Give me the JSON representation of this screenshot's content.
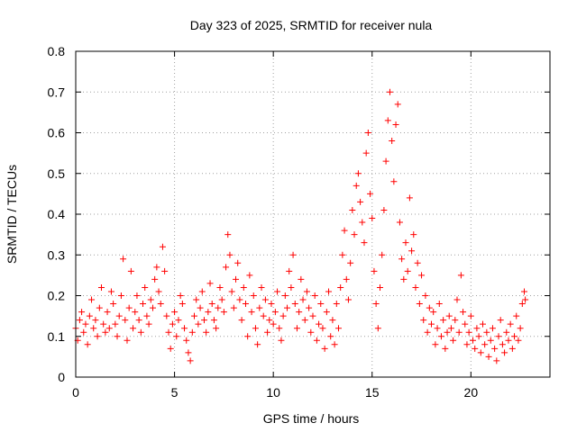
{
  "chart_data": {
    "type": "scatter",
    "title": "Day 323 of 2025, SRMTID for receiver nula",
    "xlabel": "GPS time / hours",
    "ylabel": "SRMTID / TECUs",
    "xlim": [
      0,
      24
    ],
    "ylim": [
      0,
      0.8
    ],
    "x_ticks": [
      0,
      5,
      10,
      15,
      20
    ],
    "x_tick_labels": [
      "0",
      "5",
      "10",
      "15",
      "20"
    ],
    "y_ticks": [
      0,
      0.1,
      0.2,
      0.3,
      0.4,
      0.5,
      0.6,
      0.7,
      0.8
    ],
    "y_tick_labels": [
      "0",
      "0.1",
      "0.2",
      "0.3",
      "0.4",
      "0.5",
      "0.6",
      "0.7",
      "0.8"
    ],
    "grid": true,
    "marker": "plus",
    "color": "#ff0000",
    "series": [
      {
        "name": "SRMTID",
        "points": [
          [
            0.0,
            0.12
          ],
          [
            0.1,
            0.09
          ],
          [
            0.2,
            0.14
          ],
          [
            0.3,
            0.16
          ],
          [
            0.4,
            0.11
          ],
          [
            0.5,
            0.13
          ],
          [
            0.6,
            0.08
          ],
          [
            0.7,
            0.15
          ],
          [
            0.8,
            0.19
          ],
          [
            0.9,
            0.12
          ],
          [
            1.0,
            0.14
          ],
          [
            1.1,
            0.1
          ],
          [
            1.2,
            0.17
          ],
          [
            1.3,
            0.22
          ],
          [
            1.4,
            0.13
          ],
          [
            1.5,
            0.11
          ],
          [
            1.6,
            0.16
          ],
          [
            1.7,
            0.12
          ],
          [
            1.8,
            0.21
          ],
          [
            1.9,
            0.18
          ],
          [
            2.0,
            0.13
          ],
          [
            2.1,
            0.1
          ],
          [
            2.2,
            0.15
          ],
          [
            2.3,
            0.2
          ],
          [
            2.4,
            0.29
          ],
          [
            2.5,
            0.14
          ],
          [
            2.6,
            0.09
          ],
          [
            2.7,
            0.17
          ],
          [
            2.8,
            0.26
          ],
          [
            2.9,
            0.12
          ],
          [
            3.0,
            0.16
          ],
          [
            3.1,
            0.2
          ],
          [
            3.2,
            0.14
          ],
          [
            3.3,
            0.11
          ],
          [
            3.4,
            0.18
          ],
          [
            3.5,
            0.22
          ],
          [
            3.6,
            0.15
          ],
          [
            3.7,
            0.13
          ],
          [
            3.8,
            0.19
          ],
          [
            3.9,
            0.17
          ],
          [
            4.0,
            0.24
          ],
          [
            4.1,
            0.27
          ],
          [
            4.2,
            0.21
          ],
          [
            4.3,
            0.18
          ],
          [
            4.4,
            0.32
          ],
          [
            4.5,
            0.26
          ],
          [
            4.6,
            0.15
          ],
          [
            4.7,
            0.11
          ],
          [
            4.8,
            0.07
          ],
          [
            4.9,
            0.13
          ],
          [
            5.0,
            0.16
          ],
          [
            5.1,
            0.1
          ],
          [
            5.2,
            0.14
          ],
          [
            5.3,
            0.2
          ],
          [
            5.4,
            0.18
          ],
          [
            5.5,
            0.12
          ],
          [
            5.6,
            0.09
          ],
          [
            5.7,
            0.06
          ],
          [
            5.8,
            0.04
          ],
          [
            5.9,
            0.11
          ],
          [
            6.0,
            0.15
          ],
          [
            6.1,
            0.19
          ],
          [
            6.2,
            0.13
          ],
          [
            6.3,
            0.17
          ],
          [
            6.4,
            0.21
          ],
          [
            6.5,
            0.14
          ],
          [
            6.6,
            0.11
          ],
          [
            6.7,
            0.16
          ],
          [
            6.8,
            0.23
          ],
          [
            6.9,
            0.18
          ],
          [
            7.0,
            0.14
          ],
          [
            7.1,
            0.12
          ],
          [
            7.2,
            0.17
          ],
          [
            7.3,
            0.22
          ],
          [
            7.4,
            0.19
          ],
          [
            7.5,
            0.16
          ],
          [
            7.6,
            0.27
          ],
          [
            7.7,
            0.35
          ],
          [
            7.8,
            0.3
          ],
          [
            7.9,
            0.21
          ],
          [
            8.0,
            0.17
          ],
          [
            8.1,
            0.24
          ],
          [
            8.2,
            0.28
          ],
          [
            8.3,
            0.19
          ],
          [
            8.4,
            0.14
          ],
          [
            8.5,
            0.22
          ],
          [
            8.6,
            0.18
          ],
          [
            8.7,
            0.1
          ],
          [
            8.8,
            0.25
          ],
          [
            8.9,
            0.16
          ],
          [
            9.0,
            0.2
          ],
          [
            9.1,
            0.12
          ],
          [
            9.2,
            0.08
          ],
          [
            9.3,
            0.17
          ],
          [
            9.4,
            0.22
          ],
          [
            9.5,
            0.15
          ],
          [
            9.6,
            0.19
          ],
          [
            9.7,
            0.11
          ],
          [
            9.8,
            0.14
          ],
          [
            9.9,
            0.18
          ],
          [
            10.0,
            0.13
          ],
          [
            10.1,
            0.16
          ],
          [
            10.2,
            0.21
          ],
          [
            10.3,
            0.12
          ],
          [
            10.4,
            0.09
          ],
          [
            10.5,
            0.15
          ],
          [
            10.6,
            0.2
          ],
          [
            10.7,
            0.17
          ],
          [
            10.8,
            0.26
          ],
          [
            10.9,
            0.22
          ],
          [
            11.0,
            0.3
          ],
          [
            11.1,
            0.18
          ],
          [
            11.2,
            0.12
          ],
          [
            11.3,
            0.16
          ],
          [
            11.4,
            0.24
          ],
          [
            11.5,
            0.19
          ],
          [
            11.6,
            0.14
          ],
          [
            11.7,
            0.21
          ],
          [
            11.8,
            0.17
          ],
          [
            11.9,
            0.11
          ],
          [
            12.0,
            0.15
          ],
          [
            12.1,
            0.2
          ],
          [
            12.2,
            0.09
          ],
          [
            12.3,
            0.13
          ],
          [
            12.4,
            0.18
          ],
          [
            12.5,
            0.12
          ],
          [
            12.6,
            0.07
          ],
          [
            12.7,
            0.16
          ],
          [
            12.8,
            0.21
          ],
          [
            12.9,
            0.1
          ],
          [
            13.0,
            0.14
          ],
          [
            13.1,
            0.08
          ],
          [
            13.2,
            0.18
          ],
          [
            13.3,
            0.12
          ],
          [
            13.4,
            0.22
          ],
          [
            13.5,
            0.3
          ],
          [
            13.6,
            0.36
          ],
          [
            13.7,
            0.24
          ],
          [
            13.8,
            0.19
          ],
          [
            13.9,
            0.28
          ],
          [
            14.0,
            0.41
          ],
          [
            14.1,
            0.35
          ],
          [
            14.2,
            0.47
          ],
          [
            14.3,
            0.5
          ],
          [
            14.4,
            0.43
          ],
          [
            14.5,
            0.38
          ],
          [
            14.6,
            0.33
          ],
          [
            14.7,
            0.55
          ],
          [
            14.8,
            0.6
          ],
          [
            14.9,
            0.45
          ],
          [
            15.0,
            0.39
          ],
          [
            15.1,
            0.26
          ],
          [
            15.2,
            0.18
          ],
          [
            15.3,
            0.12
          ],
          [
            15.4,
            0.22
          ],
          [
            15.5,
            0.3
          ],
          [
            15.6,
            0.41
          ],
          [
            15.7,
            0.53
          ],
          [
            15.8,
            0.63
          ],
          [
            15.9,
            0.7
          ],
          [
            16.0,
            0.58
          ],
          [
            16.1,
            0.48
          ],
          [
            16.2,
            0.62
          ],
          [
            16.3,
            0.67
          ],
          [
            16.4,
            0.38
          ],
          [
            16.5,
            0.29
          ],
          [
            16.6,
            0.24
          ],
          [
            16.7,
            0.33
          ],
          [
            16.8,
            0.26
          ],
          [
            16.9,
            0.44
          ],
          [
            17.0,
            0.31
          ],
          [
            17.1,
            0.35
          ],
          [
            17.2,
            0.22
          ],
          [
            17.3,
            0.28
          ],
          [
            17.4,
            0.18
          ],
          [
            17.5,
            0.25
          ],
          [
            17.6,
            0.14
          ],
          [
            17.7,
            0.2
          ],
          [
            17.8,
            0.11
          ],
          [
            17.9,
            0.17
          ],
          [
            18.0,
            0.13
          ],
          [
            18.1,
            0.16
          ],
          [
            18.2,
            0.08
          ],
          [
            18.3,
            0.12
          ],
          [
            18.4,
            0.18
          ],
          [
            18.5,
            0.1
          ],
          [
            18.6,
            0.14
          ],
          [
            18.7,
            0.07
          ],
          [
            18.8,
            0.11
          ],
          [
            18.9,
            0.15
          ],
          [
            19.0,
            0.12
          ],
          [
            19.1,
            0.09
          ],
          [
            19.2,
            0.14
          ],
          [
            19.3,
            0.19
          ],
          [
            19.4,
            0.11
          ],
          [
            19.5,
            0.25
          ],
          [
            19.6,
            0.16
          ],
          [
            19.7,
            0.13
          ],
          [
            19.8,
            0.08
          ],
          [
            19.9,
            0.11
          ],
          [
            20.0,
            0.15
          ],
          [
            20.1,
            0.09
          ],
          [
            20.2,
            0.07
          ],
          [
            20.3,
            0.12
          ],
          [
            20.4,
            0.1
          ],
          [
            20.5,
            0.06
          ],
          [
            20.6,
            0.13
          ],
          [
            20.7,
            0.08
          ],
          [
            20.8,
            0.11
          ],
          [
            20.9,
            0.05
          ],
          [
            21.0,
            0.09
          ],
          [
            21.1,
            0.12
          ],
          [
            21.2,
            0.07
          ],
          [
            21.3,
            0.04
          ],
          [
            21.4,
            0.1
          ],
          [
            21.5,
            0.14
          ],
          [
            21.6,
            0.08
          ],
          [
            21.7,
            0.06
          ],
          [
            21.8,
            0.11
          ],
          [
            21.9,
            0.09
          ],
          [
            22.0,
            0.13
          ],
          [
            22.1,
            0.07
          ],
          [
            22.2,
            0.1
          ],
          [
            22.3,
            0.15
          ],
          [
            22.4,
            0.09
          ],
          [
            22.5,
            0.12
          ],
          [
            22.6,
            0.18
          ],
          [
            22.7,
            0.21
          ],
          [
            22.75,
            0.19
          ]
        ]
      }
    ]
  }
}
